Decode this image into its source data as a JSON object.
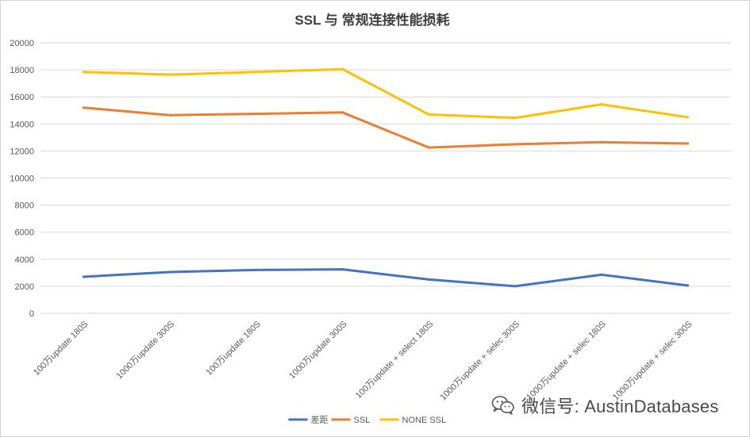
{
  "chart_data": {
    "type": "line",
    "title": "SSL 与 常规连接性能损耗",
    "xlabel": "",
    "ylabel": "",
    "ylim": [
      0,
      20000
    ],
    "yticks": [
      0,
      2000,
      4000,
      6000,
      8000,
      10000,
      12000,
      14000,
      16000,
      18000,
      20000
    ],
    "grid": true,
    "legend_position": "bottom",
    "categories": [
      "100万update 180S",
      "1000万update 300S",
      "100万update 180S",
      "1000万update 300S",
      "100万update + select 180S",
      "1000万update + selec 300S",
      "1000万update + selec 180S",
      "1000万update + selec 300S"
    ],
    "series": [
      {
        "name": "差距",
        "color": "#4472c4",
        "values": [
          2700,
          3050,
          3200,
          3250,
          2500,
          2000,
          2850,
          2050
        ]
      },
      {
        "name": "SSL",
        "color": "#ed7d31",
        "values": [
          15200,
          14650,
          14750,
          14850,
          12250,
          12500,
          12650,
          12550
        ]
      },
      {
        "name": "NONE SSL",
        "color": "#ffc000",
        "values": [
          17850,
          17650,
          17850,
          18050,
          14700,
          14450,
          15450,
          14500
        ]
      }
    ]
  },
  "watermark": {
    "text": "微信号: AustinDatabases",
    "icon": "wechat-icon"
  }
}
